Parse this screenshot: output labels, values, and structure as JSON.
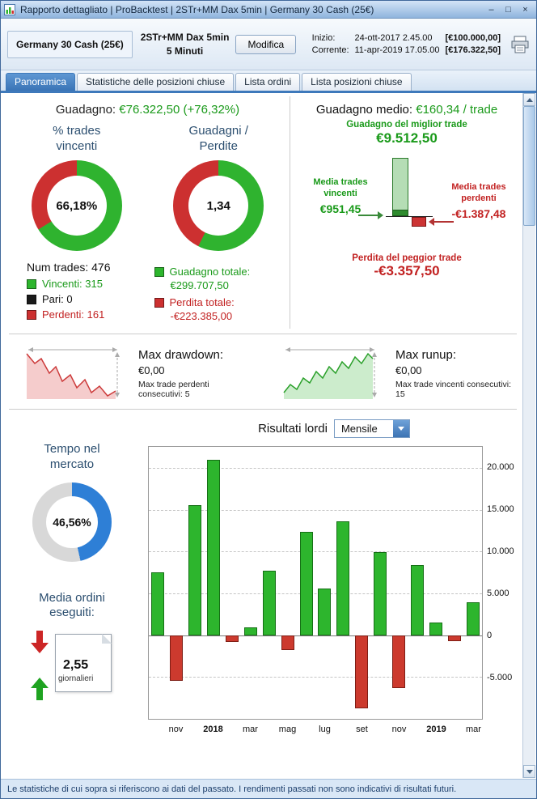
{
  "window": {
    "title": "Rapporto dettagliato  |  ProBacktest  |  2STr+MM Dax 5min  |  Germany 30 Cash (25€)",
    "controls": {
      "minimize": "–",
      "maximize": "□",
      "close": "×"
    }
  },
  "header": {
    "instrument": "Germany 30 Cash (25€)",
    "system_name": "2STr+MM Dax 5min",
    "system_timeframe": "5 Minuti",
    "modify_button": "Modifica",
    "start_label": "Inizio:",
    "start_datetime": "24-ott-2017 2.45.00",
    "start_capital": "[€100.000,00]",
    "current_label": "Corrente:",
    "current_datetime": "11-apr-2019 17.05.00",
    "current_capital": "[€176.322,50]"
  },
  "tabs": [
    {
      "label": "Panoramica",
      "active": true
    },
    {
      "label": "Statistiche delle posizioni chiuse",
      "active": false
    },
    {
      "label": "Lista ordini",
      "active": false
    },
    {
      "label": "Lista posizioni chiuse",
      "active": false
    }
  ],
  "overview": {
    "gain_label": "Guadagno:",
    "gain_value": "€76.322,50 (+76,32%)",
    "winrate_title": "% trades vincenti",
    "winrate_value": "66,18%",
    "ratio_title": "Guadagni / Perdite",
    "ratio_value": "1,34",
    "num_trades": "Num trades: 476",
    "legend_win": "Vincenti: 315",
    "legend_even": "Pari: 0",
    "legend_loss": "Perdenti: 161",
    "total_gain_label": "Guadagno totale:",
    "total_gain_value": "€299.707,50",
    "total_loss_label": "Perdita totale:",
    "total_loss_value": "-€223.385,00"
  },
  "averages": {
    "avg_gain_label": "Guadagno medio:",
    "avg_gain_value": "€160,34 / trade",
    "best_trade_label": "Guadagno del miglior trade",
    "best_trade_value": "€9.512,50",
    "avg_win_label": "Media trades vincenti",
    "avg_win_value": "€951,45",
    "avg_loss_label": "Media trades perdenti",
    "avg_loss_value": "-€1.387,48",
    "worst_trade_label": "Perdita del peggior trade",
    "worst_trade_value": "-€3.357,50"
  },
  "drawdown": {
    "label": "Max drawdown:",
    "value": "€0,00",
    "sub": "Max trade perdenti consecutivi:  5"
  },
  "runup": {
    "label": "Max runup:",
    "value": "€0,00",
    "sub": "Max trade vincenti consecutivi: 15"
  },
  "bottom": {
    "time_title": "Tempo nel mercato",
    "time_value": "46,56%",
    "orders_title": "Media ordini eseguiti:",
    "orders_value": "2,55",
    "orders_sub": "giornalieri",
    "results_title": "Risultati lordi",
    "results_period": "Mensile"
  },
  "donuts": {
    "winrate": {
      "pct": 66.18,
      "color": "#2fb32f",
      "rest": "#cc3030"
    },
    "ratio": {
      "pct": 57.3,
      "color": "#2fb32f",
      "rest": "#cc3030"
    },
    "time": {
      "pct": 46.56,
      "color": "#2e7fd6",
      "rest": "#d8d8d8"
    }
  },
  "chart_data": {
    "type": "bar",
    "title": "Risultati lordi",
    "period_selected": "Mensile",
    "categories": [
      "ott 2017",
      "nov 2017",
      "dic 2017",
      "gen 2018",
      "feb 2018",
      "mar 2018",
      "apr 2018",
      "mag 2018",
      "giu 2018",
      "lug 2018",
      "ago 2018",
      "set 2018",
      "ott 2018",
      "nov 2018",
      "dic 2018",
      "gen 2019",
      "feb 2019",
      "mar 2019"
    ],
    "values": [
      7500,
      -5500,
      15500,
      21000,
      -800,
      900,
      7700,
      -1800,
      12300,
      5600,
      13600,
      -8700,
      9900,
      -6300,
      8400,
      1500,
      -700,
      3900
    ],
    "ylim": [
      -10000,
      22500
    ],
    "grid": true,
    "legend": false,
    "y_ticks": [
      {
        "value": 20000,
        "label": "20.000"
      },
      {
        "value": 15000,
        "label": "15.000"
      },
      {
        "value": 10000,
        "label": "10.000"
      },
      {
        "value": 5000,
        "label": "5.000"
      },
      {
        "value": 0,
        "label": "0"
      },
      {
        "value": -5000,
        "label": "-5.000"
      }
    ],
    "x_ticks": [
      {
        "pos": 1,
        "label": "nov",
        "bold": false
      },
      {
        "pos": 3,
        "label": "2018",
        "bold": true
      },
      {
        "pos": 5,
        "label": "mar",
        "bold": false
      },
      {
        "pos": 7,
        "label": "mag",
        "bold": false
      },
      {
        "pos": 9,
        "label": "lug",
        "bold": false
      },
      {
        "pos": 11,
        "label": "set",
        "bold": false
      },
      {
        "pos": 13,
        "label": "nov",
        "bold": false
      },
      {
        "pos": 15,
        "label": "2019",
        "bold": true
      },
      {
        "pos": 17,
        "label": "mar",
        "bold": false
      }
    ],
    "bar_color_pos": "#2db52d",
    "bar_color_neg": "#cc3a2e"
  },
  "footer": {
    "disclaimer": "Le statistiche di cui sopra si riferiscono ai dati del passato. I rendimenti passati non sono indicativi di risultati futuri."
  }
}
